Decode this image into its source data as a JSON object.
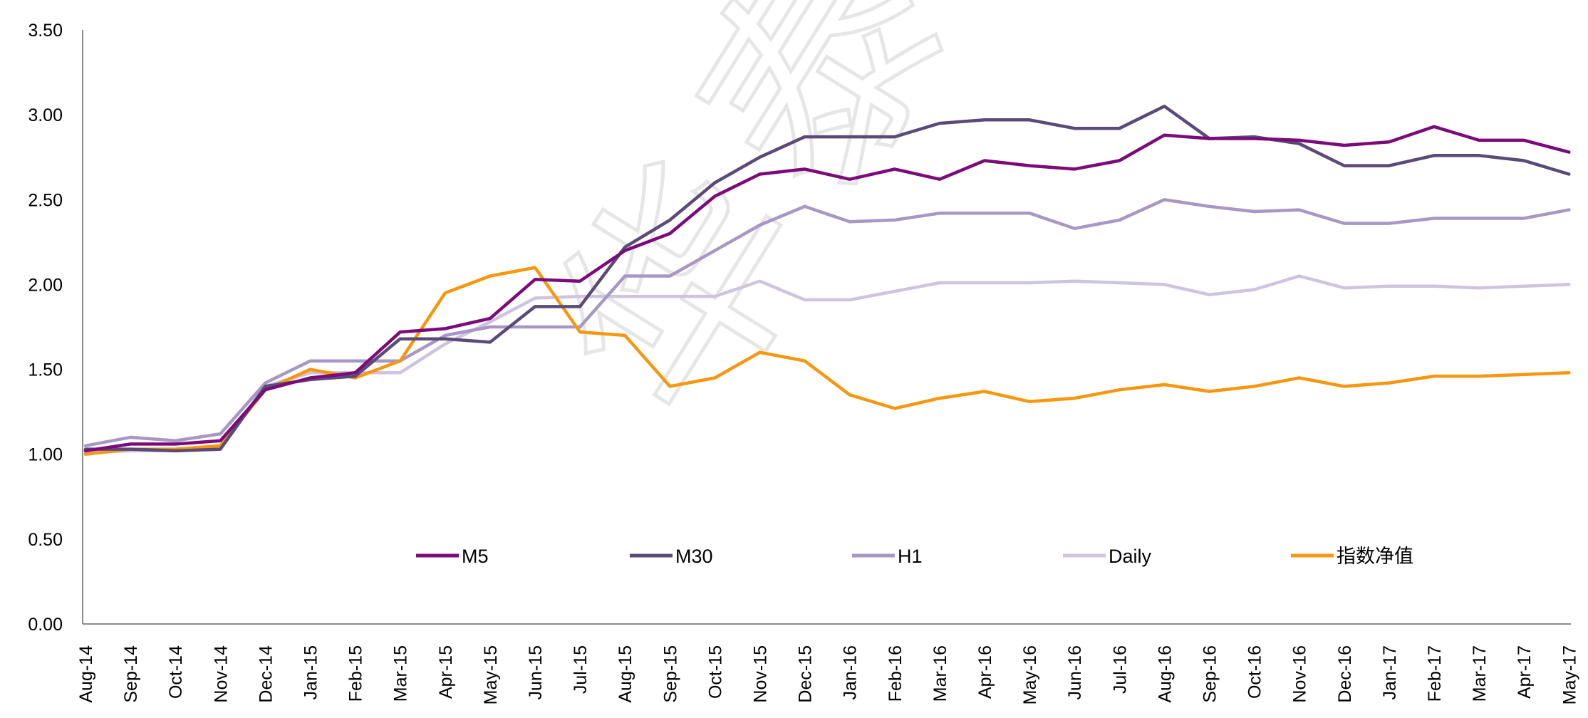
{
  "chart_data": {
    "type": "line",
    "title": "",
    "xlabel": "",
    "ylabel": "",
    "ylim": [
      0,
      3.5
    ],
    "y_ticks": [
      "0.00",
      "0.50",
      "1.00",
      "1.50",
      "2.00",
      "2.50",
      "3.00",
      "3.50"
    ],
    "x_ticks": [
      "Aug-14",
      "Sep-14",
      "Oct-14",
      "Nov-14",
      "Dec-14",
      "Jan-15",
      "Feb-15",
      "Mar-15",
      "Apr-15",
      "May-15",
      "Jun-15",
      "Jul-15",
      "Aug-15",
      "Sep-15",
      "Oct-15",
      "Nov-15",
      "Dec-15",
      "Jan-16",
      "Feb-16",
      "Mar-16",
      "Apr-16",
      "May-16",
      "Jun-16",
      "Jul-16",
      "Aug-16",
      "Sep-16",
      "Oct-16",
      "Nov-16",
      "Dec-16",
      "Jan-17",
      "Feb-17",
      "Mar-17",
      "Apr-17",
      "May-17"
    ],
    "grid": false,
    "legend_position": "inside-bottom",
    "watermark": "华泰",
    "series": [
      {
        "name": "M5",
        "color": "#7b0a7b",
        "values": [
          1.02,
          1.06,
          1.06,
          1.08,
          1.38,
          1.45,
          1.48,
          1.72,
          1.74,
          1.8,
          2.03,
          2.02,
          2.2,
          2.3,
          2.52,
          2.65,
          2.68,
          2.62,
          2.68,
          2.62,
          2.73,
          2.7,
          2.68,
          2.73,
          2.88,
          2.86,
          2.86,
          2.85,
          2.82,
          2.84,
          2.93,
          2.85,
          2.85,
          2.78
        ]
      },
      {
        "name": "M30",
        "color": "#5b4a78",
        "values": [
          1.03,
          1.03,
          1.02,
          1.03,
          1.4,
          1.44,
          1.46,
          1.68,
          1.68,
          1.66,
          1.87,
          1.87,
          2.22,
          2.38,
          2.6,
          2.75,
          2.87,
          2.87,
          2.87,
          2.95,
          2.97,
          2.97,
          2.92,
          2.92,
          3.05,
          2.86,
          2.87,
          2.83,
          2.7,
          2.7,
          2.76,
          2.76,
          2.73,
          2.65
        ]
      },
      {
        "name": "H1",
        "color": "#a897c4",
        "values": [
          1.05,
          1.1,
          1.08,
          1.12,
          1.42,
          1.55,
          1.55,
          1.55,
          1.7,
          1.75,
          1.75,
          1.75,
          2.05,
          2.05,
          2.2,
          2.35,
          2.46,
          2.37,
          2.38,
          2.42,
          2.42,
          2.42,
          2.33,
          2.38,
          2.5,
          2.46,
          2.43,
          2.44,
          2.36,
          2.36,
          2.39,
          2.39,
          2.39,
          2.44
        ]
      },
      {
        "name": "Daily",
        "color": "#cfc3e0",
        "values": [
          1.01,
          1.02,
          1.02,
          1.05,
          1.4,
          1.48,
          1.48,
          1.48,
          1.65,
          1.78,
          1.92,
          1.93,
          1.93,
          1.93,
          1.93,
          2.02,
          1.91,
          1.91,
          1.96,
          2.01,
          2.01,
          2.01,
          2.02,
          2.01,
          2.0,
          1.94,
          1.97,
          2.05,
          1.98,
          1.99,
          1.99,
          1.98,
          1.99,
          2.0
        ]
      },
      {
        "name": "指数净值",
        "color": "#f7960f",
        "values": [
          1.0,
          1.03,
          1.03,
          1.05,
          1.38,
          1.5,
          1.45,
          1.55,
          1.95,
          2.05,
          2.1,
          1.72,
          1.7,
          1.4,
          1.45,
          1.6,
          1.55,
          1.35,
          1.27,
          1.33,
          1.37,
          1.31,
          1.33,
          1.38,
          1.41,
          1.37,
          1.4,
          1.45,
          1.4,
          1.42,
          1.46,
          1.46,
          1.47,
          1.48
        ]
      }
    ]
  }
}
